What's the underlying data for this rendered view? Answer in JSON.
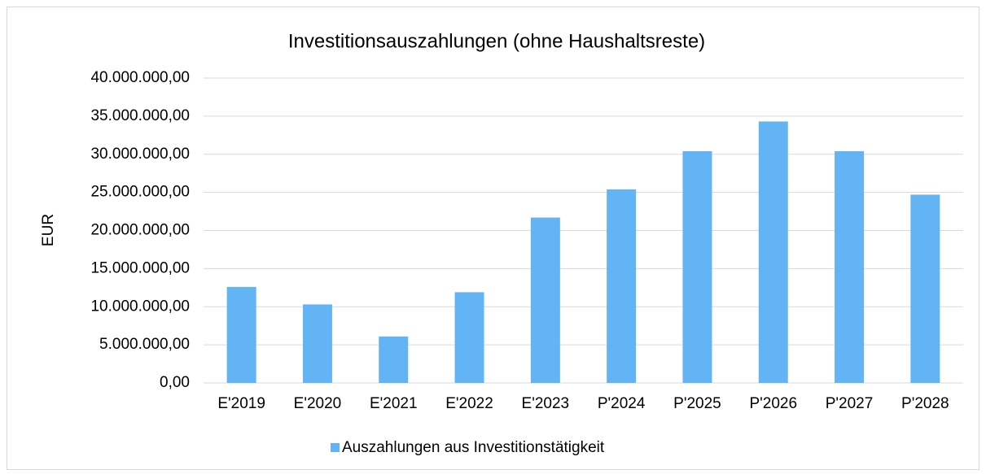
{
  "chart_data": {
    "type": "bar",
    "title": "Investitionsauszahlungen (ohne Haushaltsreste)",
    "y_label": "EUR",
    "categories": [
      "E'2019",
      "E'2020",
      "E'2021",
      "E'2022",
      "E'2023",
      "P'2024",
      "P'2025",
      "P'2026",
      "P'2027",
      "P'2028"
    ],
    "series": [
      {
        "name": "Auszahlungen aus Investitionstätigkeit",
        "color": "#63b4f5",
        "values": [
          12600000,
          10300000,
          6100000,
          11900000,
          21700000,
          25400000,
          30400000,
          34300000,
          30400000,
          24700000
        ]
      }
    ],
    "ylim": [
      0,
      40000000
    ],
    "yticks": [
      {
        "value": 0,
        "label": "0,00"
      },
      {
        "value": 5000000,
        "label": "5.000.000,00"
      },
      {
        "value": 10000000,
        "label": "10.000.000,00"
      },
      {
        "value": 15000000,
        "label": "15.000.000,00"
      },
      {
        "value": 20000000,
        "label": "20.000.000,00"
      },
      {
        "value": 25000000,
        "label": "25.000.000,00"
      },
      {
        "value": 30000000,
        "label": "30.000.000,00"
      },
      {
        "value": 35000000,
        "label": "35.000.000,00"
      },
      {
        "value": 40000000,
        "label": "40.000.000,00"
      }
    ],
    "grid": true,
    "legend": "bottom"
  }
}
